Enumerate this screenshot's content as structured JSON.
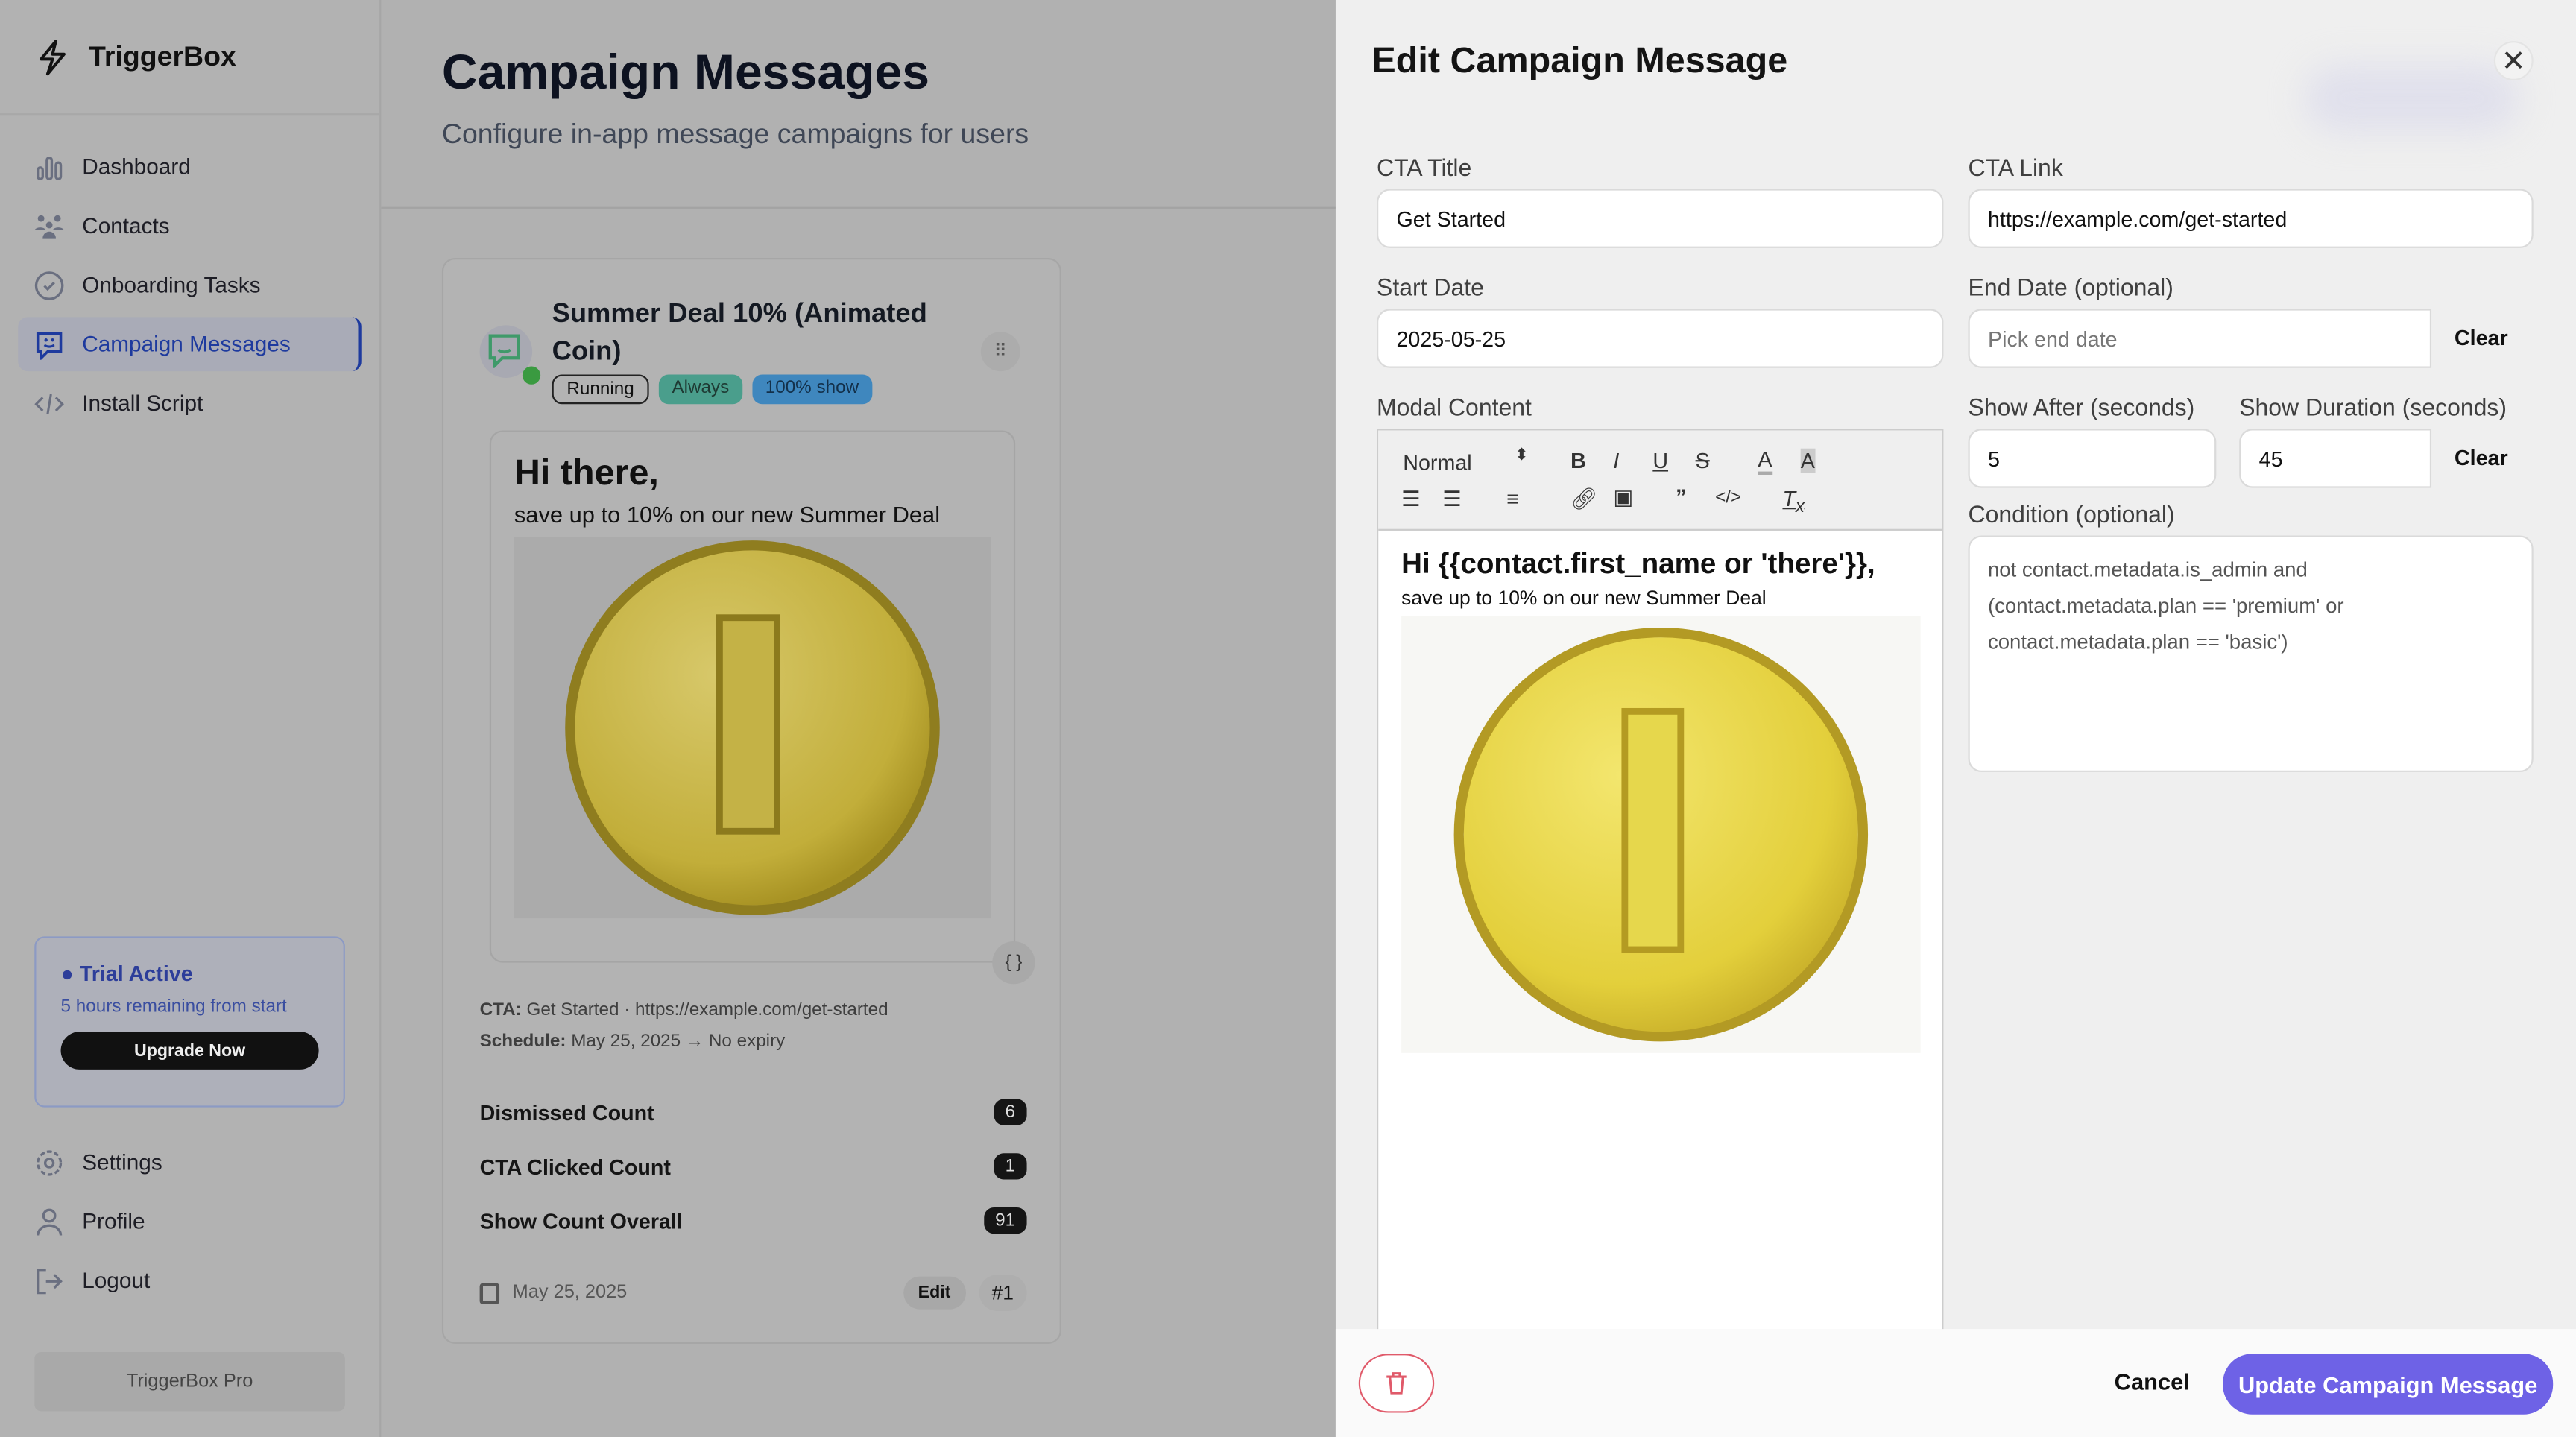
{
  "app": {
    "name": "TriggerBox"
  },
  "sidebar": {
    "items": [
      {
        "label": "Dashboard"
      },
      {
        "label": "Contacts"
      },
      {
        "label": "Onboarding Tasks"
      },
      {
        "label": "Campaign Messages"
      },
      {
        "label": "Install Script"
      }
    ],
    "bottom": [
      {
        "label": "Settings"
      },
      {
        "label": "Profile"
      },
      {
        "label": "Logout"
      }
    ],
    "trial": {
      "title": "Trial Active",
      "subtitle": "5 hours remaining from start",
      "button": "Upgrade Now"
    },
    "plan": "TriggerBox Pro"
  },
  "page": {
    "title": "Campaign Messages",
    "subtitle": "Configure in-app message campaigns for users"
  },
  "card": {
    "title": "Summer Deal 10% (Animated Coin)",
    "badges": [
      "Running",
      "Always",
      "100% show"
    ],
    "preview_heading": "Hi there,",
    "preview_text": "save up to 10% on our new Summer Deal",
    "cta_label": "CTA:",
    "cta_value": "Get Started · https://example.com/get-started",
    "schedule_label": "Schedule:",
    "schedule_value": "May 25, 2025 → No expiry",
    "stats": [
      {
        "label": "Dismissed Count",
        "value": "6"
      },
      {
        "label": "CTA Clicked Count",
        "value": "1"
      },
      {
        "label": "Show Count Overall",
        "value": "91"
      }
    ],
    "date": "May 25, 2025",
    "edit": "Edit",
    "index": "#1"
  },
  "drawer": {
    "title": "Edit Campaign Message",
    "cta_title": {
      "label": "CTA Title",
      "value": "Get Started"
    },
    "cta_link": {
      "label": "CTA Link",
      "value": "https://example.com/get-started"
    },
    "start_date": {
      "label": "Start Date",
      "value": "2025-05-25"
    },
    "end_date": {
      "label": "End Date (optional)",
      "placeholder": "Pick end date",
      "clear": "Clear"
    },
    "modal_content": {
      "label": "Modal Content",
      "format": "Normal",
      "heading": "Hi {{contact.first_name or 'there'}},",
      "text": "save up to 10% on our new Summer Deal"
    },
    "show_after": {
      "label": "Show After (seconds)",
      "value": "5"
    },
    "show_duration": {
      "label": "Show Duration (seconds)",
      "value": "45",
      "clear": "Clear"
    },
    "condition": {
      "label": "Condition (optional)",
      "value": "not contact.metadata.is_admin and (contact.metadata.plan == 'premium' or contact.metadata.plan == 'basic')"
    },
    "cancel": "Cancel",
    "submit": "Update Campaign Message"
  },
  "colors": {
    "accent": "#6e62e6",
    "active_nav": "#1e3a9e",
    "running_badge": "#4a9e8c",
    "show_badge": "#3f87be",
    "delete": "#e05a6a"
  }
}
